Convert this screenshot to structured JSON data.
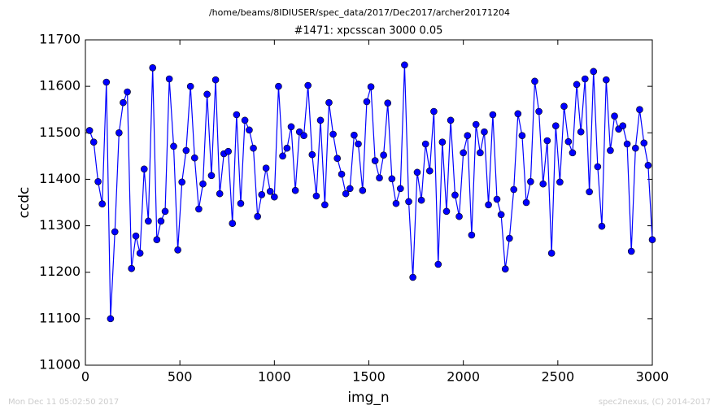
{
  "header": "/home/beams/8IDIUSER/spec_data/2017/Dec2017/archer20171204",
  "footer_left": "Mon Dec 11 05:02:50 2017",
  "footer_right": "spec2nexus, (C) 2014-2017",
  "chart_data": {
    "type": "line",
    "title": "#1471: xpcsscan 3000 0.05",
    "x_label": "img_n",
    "y_label": "ccdc",
    "xlim": [
      0,
      3000
    ],
    "xticks": [
      0,
      500,
      1000,
      1500,
      2000,
      2500,
      3000
    ],
    "ylim": [
      11000,
      11700
    ],
    "yticks": [
      11000,
      11100,
      11200,
      11300,
      11400,
      11500,
      11600,
      11700
    ],
    "grid": false,
    "color": "#0000ff",
    "markers": true,
    "x": [
      22,
      44,
      67,
      89,
      111,
      133,
      156,
      178,
      200,
      222,
      244,
      267,
      289,
      311,
      333,
      356,
      378,
      400,
      422,
      444,
      467,
      489,
      511,
      533,
      556,
      578,
      600,
      622,
      644,
      667,
      689,
      711,
      733,
      756,
      778,
      800,
      822,
      844,
      867,
      889,
      911,
      933,
      956,
      978,
      1000,
      1022,
      1044,
      1067,
      1089,
      1111,
      1133,
      1156,
      1178,
      1200,
      1222,
      1244,
      1267,
      1289,
      1311,
      1333,
      1356,
      1378,
      1400,
      1422,
      1444,
      1467,
      1489,
      1511,
      1533,
      1556,
      1578,
      1600,
      1622,
      1644,
      1667,
      1689,
      1711,
      1733,
      1756,
      1778,
      1800,
      1822,
      1844,
      1867,
      1889,
      1911,
      1933,
      1956,
      1978,
      2000,
      2022,
      2044,
      2067,
      2089,
      2111,
      2133,
      2156,
      2178,
      2200,
      2222,
      2244,
      2267,
      2289,
      2311,
      2333,
      2356,
      2378,
      2400,
      2422,
      2444,
      2467,
      2489,
      2511,
      2533,
      2556,
      2578,
      2600,
      2622,
      2644,
      2667,
      2689,
      2711,
      2733,
      2756,
      2778,
      2800,
      2822,
      2844,
      2867,
      2889,
      2911,
      2933,
      2956,
      2978,
      3000
    ],
    "values": [
      11505,
      11480,
      11395,
      11347,
      11609,
      11100,
      11287,
      11500,
      11565,
      11588,
      11208,
      11278,
      11241,
      11422,
      11310,
      11640,
      11270,
      11310,
      11331,
      11616,
      11471,
      11248,
      11394,
      11462,
      11600,
      11446,
      11336,
      11390,
      11583,
      11408,
      11614,
      11369,
      11455,
      11460,
      11305,
      11539,
      11348,
      11527,
      11506,
      11467,
      11320,
      11367,
      11424,
      11374,
      11362,
      11600,
      11450,
      11467,
      11513,
      11376,
      11502,
      11494,
      11602,
      11453,
      11364,
      11527,
      11345,
      11565,
      11497,
      11445,
      11411,
      11369,
      11380,
      11495,
      11476,
      11376,
      11567,
      11599,
      11440,
      11403,
      11452,
      11564,
      11401,
      11348,
      11380,
      11646,
      11352,
      11189,
      11415,
      11355,
      11476,
      11418,
      11546,
      11217,
      11480,
      11331,
      11527,
      11366,
      11320,
      11457,
      11494,
      11280,
      11518,
      11457,
      11502,
      11345,
      11539,
      11357,
      11324,
      11207,
      11273,
      11378,
      11541,
      11494,
      11350,
      11395,
      11611,
      11546,
      11390,
      11483,
      11241,
      11515,
      11394,
      11557,
      11481,
      11457,
      11604,
      11502,
      11616,
      11373,
      11632,
      11427,
      11299,
      11614,
      11462,
      11536,
      11508,
      11515,
      11476,
      11245,
      11467,
      11550,
      11478,
      11430,
      11270
    ]
  }
}
